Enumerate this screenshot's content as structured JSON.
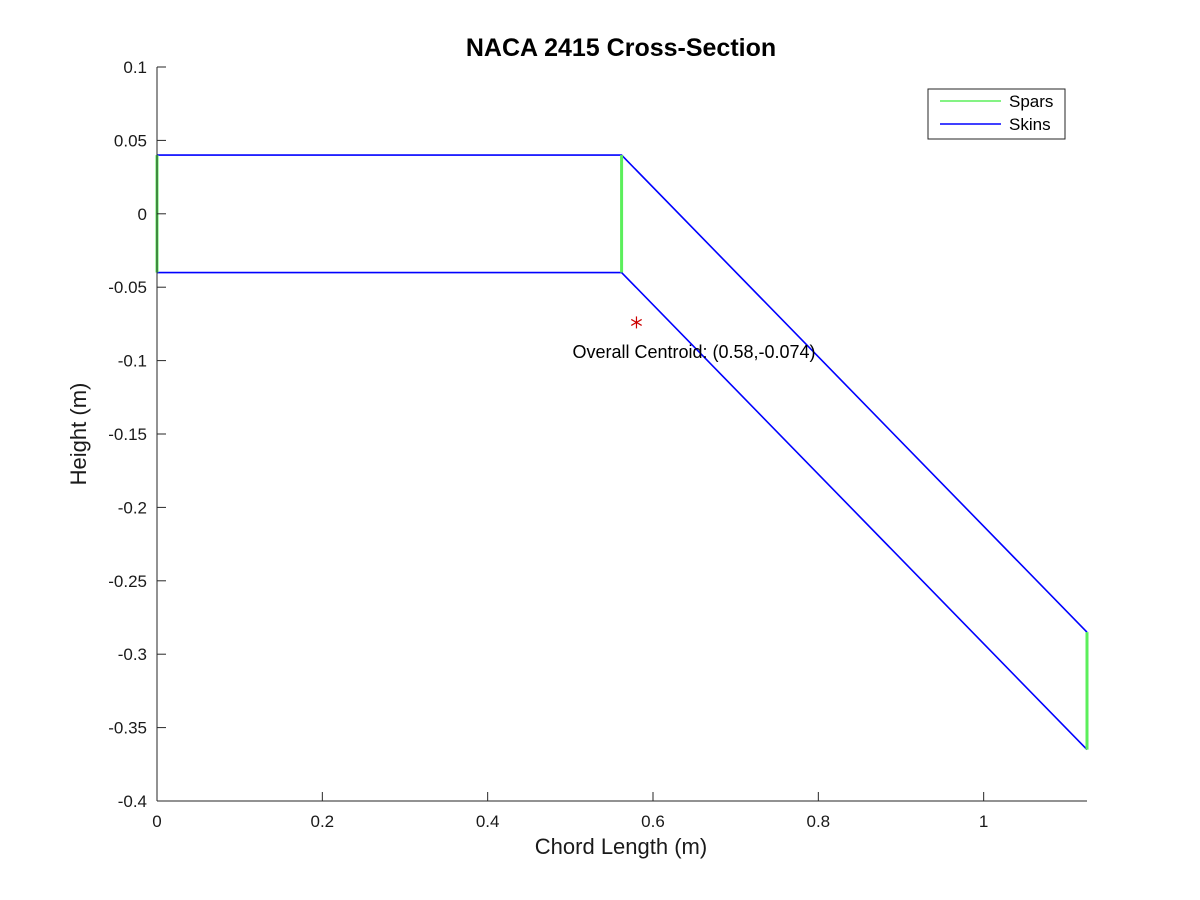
{
  "chart_data": {
    "type": "line",
    "title": "NACA 2415 Cross-Section",
    "xlabel": "Chord Length (m)",
    "ylabel": "Height (m)",
    "xlim": [
      0,
      1.125
    ],
    "ylim": [
      -0.4,
      0.1
    ],
    "xticks": [
      0,
      0.2,
      0.4,
      0.6,
      0.8,
      1
    ],
    "xtick_labels": [
      "0",
      "0.2",
      "0.4",
      "0.6",
      "0.8",
      "1"
    ],
    "yticks": [
      0.1,
      0.05,
      0,
      -0.05,
      -0.1,
      -0.15,
      -0.2,
      -0.25,
      -0.3,
      -0.35,
      -0.4
    ],
    "ytick_labels": [
      "0.1",
      "0.05",
      "0",
      "-0.05",
      "-0.1",
      "-0.15",
      "-0.2",
      "-0.25",
      "-0.3",
      "-0.35",
      "-0.4"
    ],
    "grid": false,
    "legend_position": "top-right",
    "series": [
      {
        "name": "Spars",
        "color": "#5bef5b",
        "segments": [
          [
            [
              0,
              0.04
            ],
            [
              0,
              -0.04
            ]
          ],
          [
            [
              0.562,
              0.04
            ],
            [
              0.562,
              -0.04
            ]
          ],
          [
            [
              1.125,
              -0.285
            ],
            [
              1.125,
              -0.365
            ]
          ]
        ]
      },
      {
        "name": "Skins",
        "color": "#0000ff",
        "segments": [
          [
            [
              0,
              0.04
            ],
            [
              0.562,
              0.04
            ],
            [
              1.125,
              -0.285
            ]
          ],
          [
            [
              0,
              -0.04
            ],
            [
              0.562,
              -0.04
            ],
            [
              1.125,
              -0.365
            ]
          ]
        ]
      }
    ],
    "centroid": {
      "x": 0.58,
      "y": -0.074,
      "marker": "*",
      "color": "#cc0000",
      "label": "Overall Centroid: (0.58,-0.074)"
    }
  }
}
